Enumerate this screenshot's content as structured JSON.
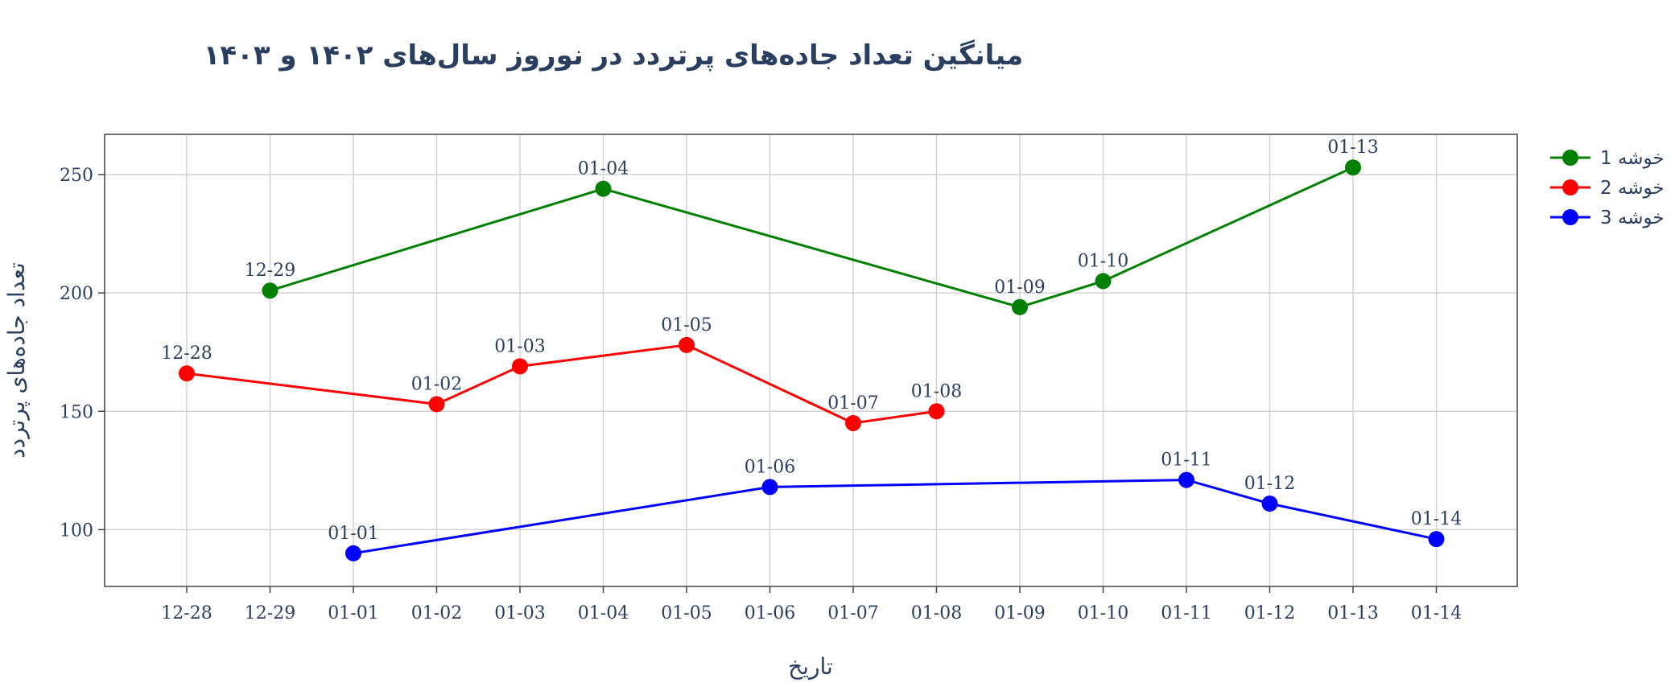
{
  "chart_data": {
    "type": "line",
    "title": "میانگین تعداد جاده‌های پرتردد در نوروز سال‌های ۱۴۰۲ و ۱۴۰۳",
    "xlabel": "تاریخ",
    "ylabel": "تعداد جاده‌های پرتردد",
    "categories": [
      "12-28",
      "12-29",
      "01-01",
      "01-02",
      "01-03",
      "01-04",
      "01-05",
      "01-06",
      "01-07",
      "01-08",
      "01-09",
      "01-10",
      "01-11",
      "01-12",
      "01-13",
      "01-14"
    ],
    "ylim": [
      76,
      267
    ],
    "yticks": [
      100,
      150,
      200,
      250
    ],
    "grid": true,
    "legend_position": "top-right, outside plot",
    "series": [
      {
        "name": "خوشه 1",
        "color": "#008000",
        "points": [
          {
            "x": "12-29",
            "y": 201
          },
          {
            "x": "01-04",
            "y": 244
          },
          {
            "x": "01-09",
            "y": 194
          },
          {
            "x": "01-10",
            "y": 205
          },
          {
            "x": "01-13",
            "y": 253
          }
        ]
      },
      {
        "name": "خوشه 2",
        "color": "#ff0000",
        "points": [
          {
            "x": "12-28",
            "y": 166
          },
          {
            "x": "01-02",
            "y": 153
          },
          {
            "x": "01-03",
            "y": 169
          },
          {
            "x": "01-05",
            "y": 178
          },
          {
            "x": "01-07",
            "y": 145
          },
          {
            "x": "01-08",
            "y": 150
          }
        ]
      },
      {
        "name": "خوشه 3",
        "color": "#0000ff",
        "points": [
          {
            "x": "01-01",
            "y": 90
          },
          {
            "x": "01-06",
            "y": 118
          },
          {
            "x": "01-11",
            "y": 121
          },
          {
            "x": "01-12",
            "y": 111
          },
          {
            "x": "01-14",
            "y": 96
          }
        ]
      }
    ]
  }
}
